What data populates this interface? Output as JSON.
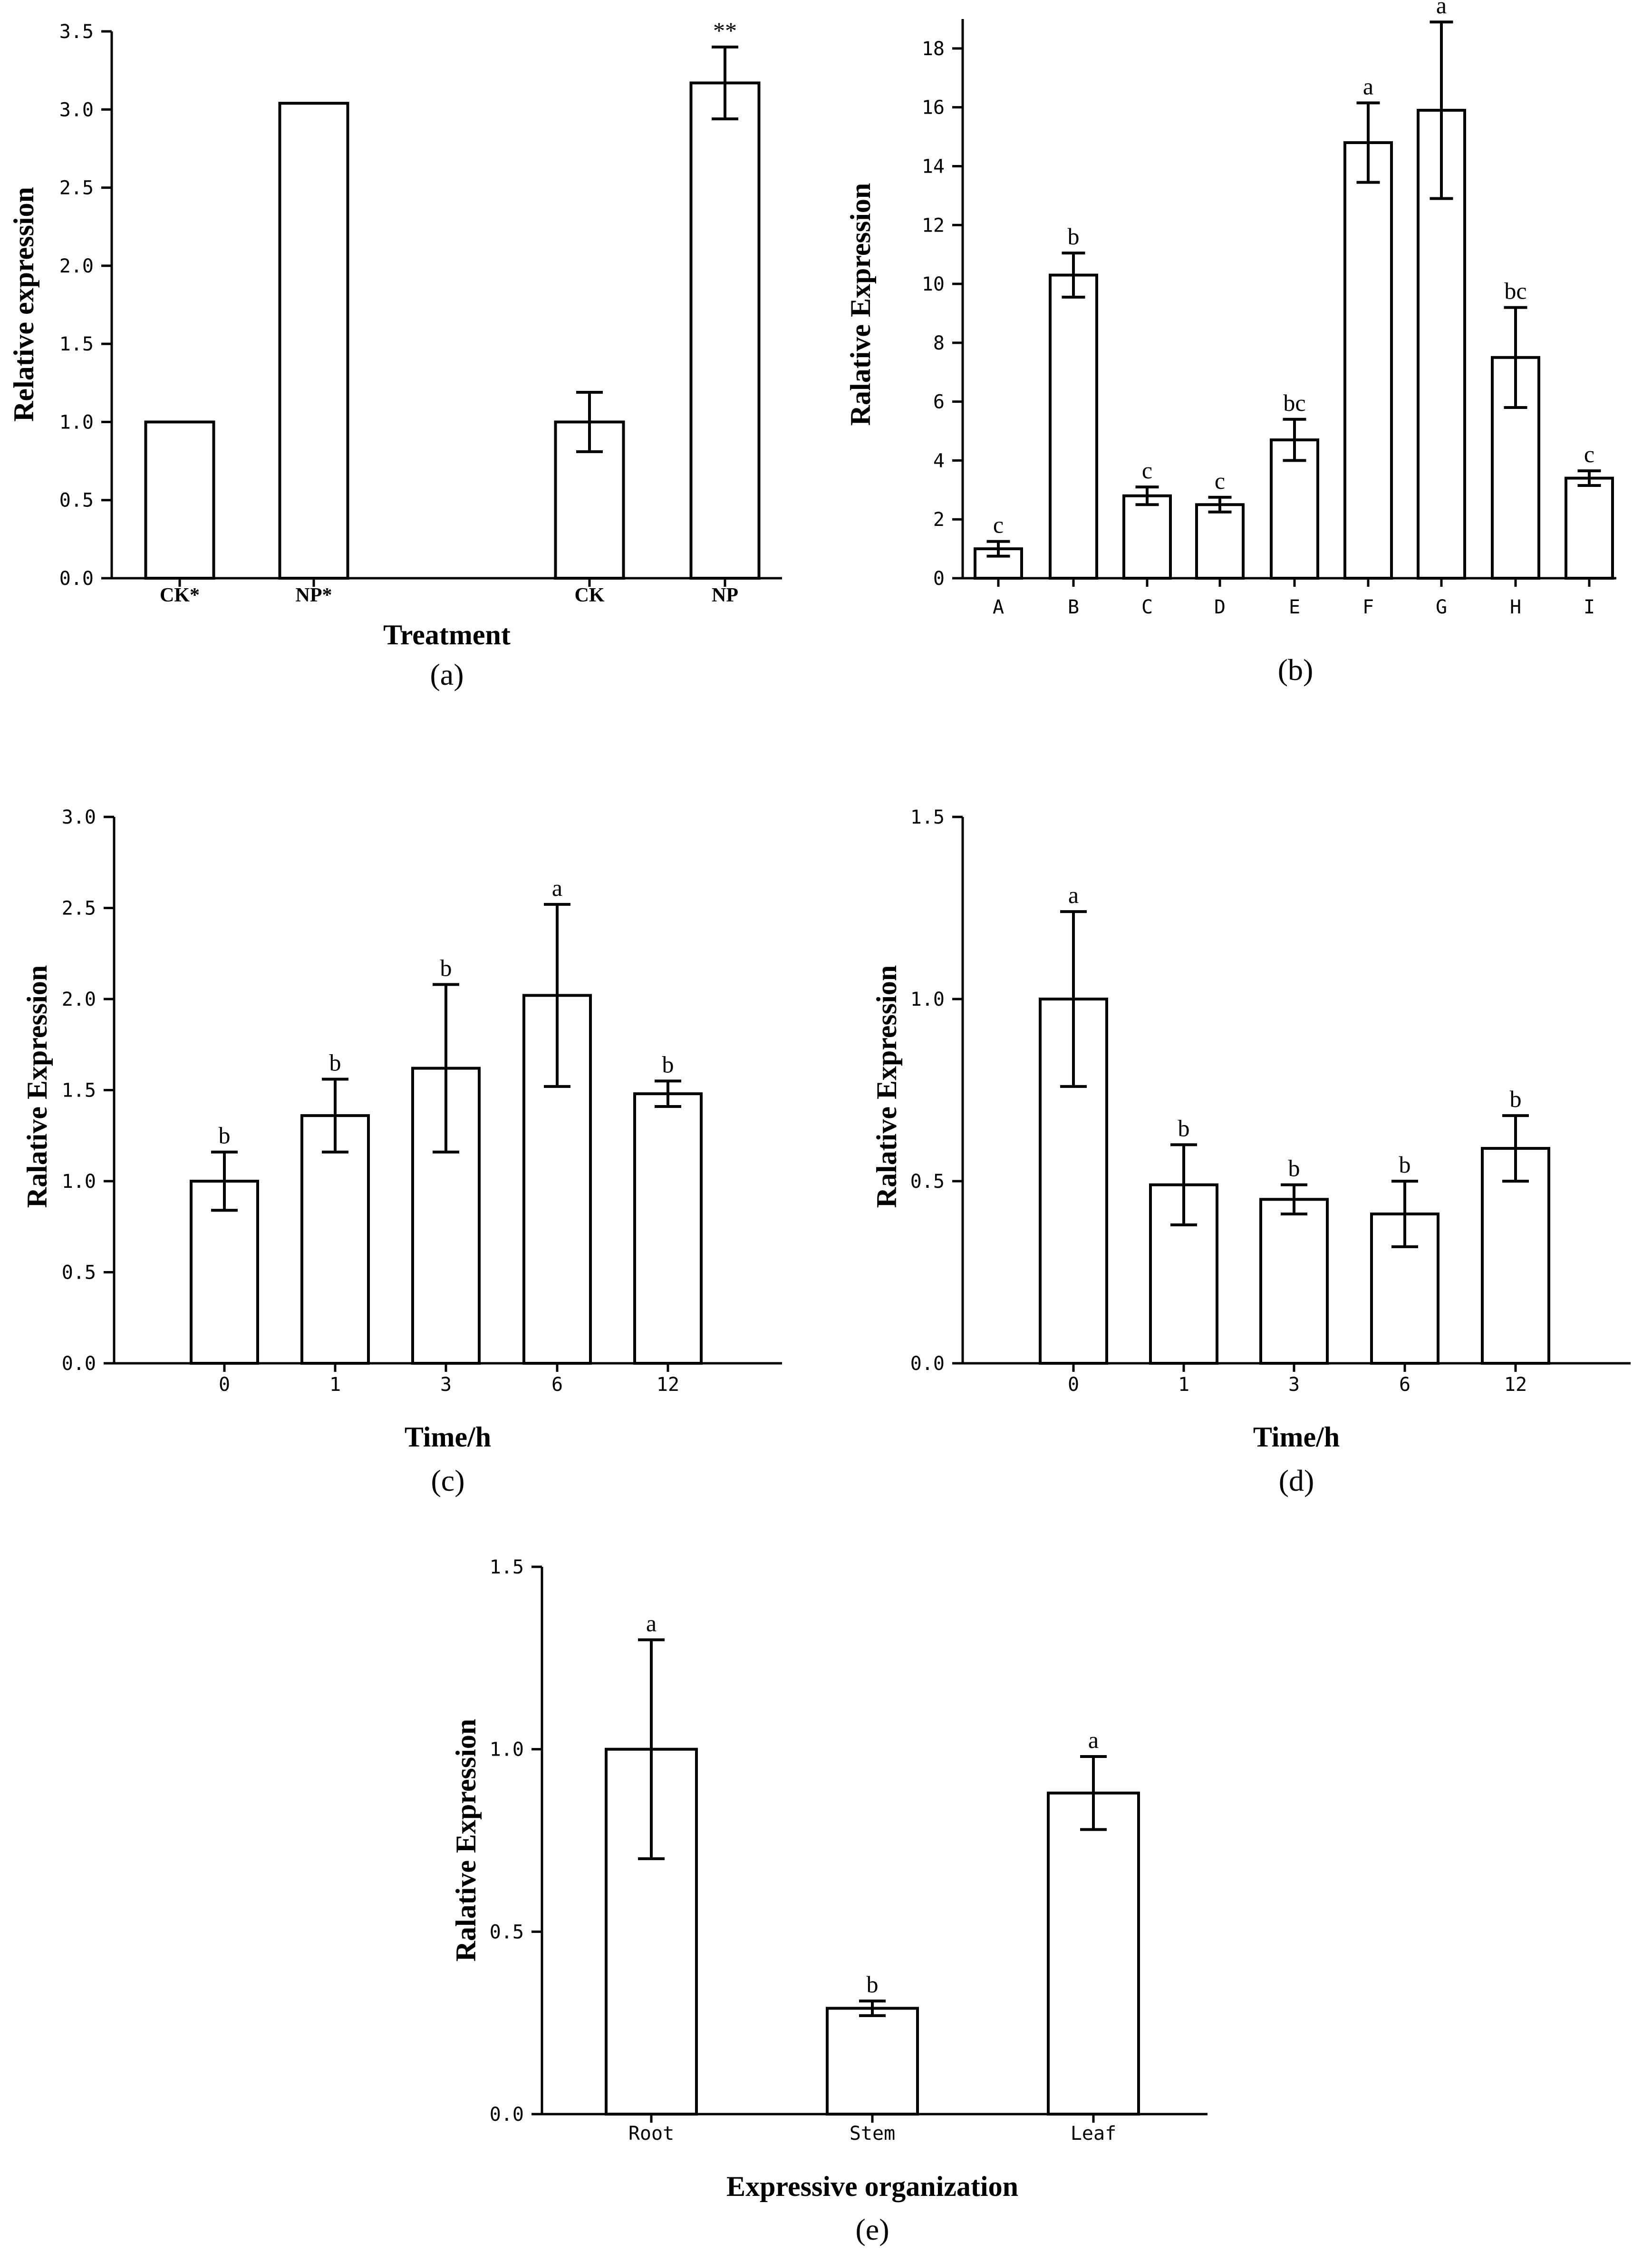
{
  "chart_data": [
    {
      "id": "a",
      "type": "bar",
      "panel_label": "(a)",
      "xlabel": "Treatment",
      "ylabel": "Relative expression",
      "ylim": [
        0,
        3.5
      ],
      "yticks": [
        "0.0",
        "0.5",
        "1.0",
        "1.5",
        "2.0",
        "2.5",
        "3.0",
        "3.5"
      ],
      "categories": [
        "CK*",
        "NP*",
        "CK",
        "NP"
      ],
      "values": [
        1.0,
        3.04,
        1.0,
        3.17
      ],
      "errors": [
        0,
        0,
        0.19,
        0.23
      ],
      "significance": [
        "",
        "",
        "",
        "**"
      ]
    },
    {
      "id": "b",
      "type": "bar",
      "panel_label": "(b)",
      "xlabel": "",
      "ylabel": "Ralative Expression",
      "ylim": [
        0,
        19
      ],
      "yticks": [
        "0",
        "2",
        "4",
        "6",
        "8",
        "10",
        "12",
        "14",
        "16",
        "18"
      ],
      "categories": [
        "A",
        "B",
        "C",
        "D",
        "E",
        "F",
        "G",
        "H",
        "I"
      ],
      "values": [
        1.0,
        10.3,
        2.8,
        2.5,
        4.7,
        14.8,
        15.9,
        7.5,
        3.4
      ],
      "errors": [
        0.25,
        0.75,
        0.3,
        0.25,
        0.7,
        1.35,
        3.0,
        1.7,
        0.25
      ],
      "significance": [
        "c",
        "b",
        "c",
        "c",
        "bc",
        "a",
        "a",
        "bc",
        "c"
      ]
    },
    {
      "id": "c",
      "type": "bar",
      "panel_label": "(c)",
      "xlabel": "Time/h",
      "ylabel": "Ralative Expression",
      "ylim": [
        0,
        3.0
      ],
      "yticks": [
        "0.0",
        "0.5",
        "1.0",
        "1.5",
        "2.0",
        "2.5",
        "3.0"
      ],
      "categories": [
        "0",
        "1",
        "3",
        "6",
        "12"
      ],
      "values": [
        1.0,
        1.36,
        1.62,
        2.02,
        1.48
      ],
      "errors": [
        0.16,
        0.2,
        0.46,
        0.5,
        0.07
      ],
      "significance": [
        "b",
        "b",
        "b",
        "a",
        "b"
      ]
    },
    {
      "id": "d",
      "type": "bar",
      "panel_label": "(d)",
      "xlabel": "Time/h",
      "ylabel": "Ralative Expression",
      "ylim": [
        0,
        1.5
      ],
      "yticks": [
        "0.0",
        "0.5",
        "1.0",
        "1.5"
      ],
      "categories": [
        "0",
        "1",
        "3",
        "6",
        "12"
      ],
      "values": [
        1.0,
        0.49,
        0.45,
        0.41,
        0.59
      ],
      "errors": [
        0.24,
        0.11,
        0.04,
        0.09,
        0.09
      ],
      "significance": [
        "a",
        "b",
        "b",
        "b",
        "b"
      ]
    },
    {
      "id": "e",
      "type": "bar",
      "panel_label": "(e)",
      "xlabel": "Expressive organization",
      "ylabel": "Ralative Expression",
      "ylim": [
        0,
        1.5
      ],
      "yticks": [
        "0.0",
        "0.5",
        "1.0",
        "1.5"
      ],
      "categories": [
        "Root",
        "Stem",
        "Leaf"
      ],
      "values": [
        1.0,
        0.29,
        0.88
      ],
      "errors": [
        0.3,
        0.02,
        0.1
      ],
      "significance": [
        "a",
        "b",
        "a"
      ]
    }
  ]
}
